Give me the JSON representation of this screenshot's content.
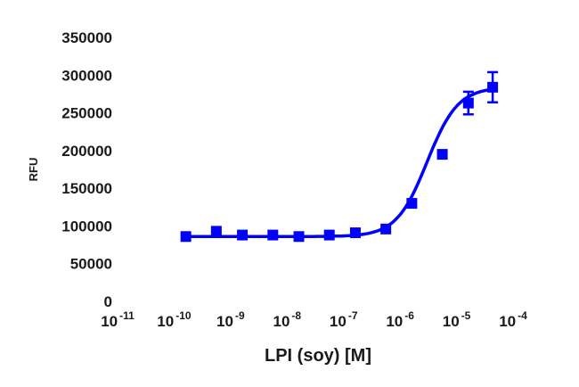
{
  "chart_data": {
    "type": "scatter",
    "title": "",
    "xlabel": "LPI (soy) [M]",
    "ylabel": "RFU",
    "x_scale": "log",
    "xlim": [
      1e-11,
      0.0001
    ],
    "ylim": [
      0,
      350000
    ],
    "grid": false,
    "legend": "none",
    "x_ticks": [
      1e-11,
      1e-10,
      1e-09,
      1e-08,
      1e-07,
      1e-06,
      1e-05,
      0.0001
    ],
    "x_tick_bases": [
      "10",
      "10",
      "10",
      "10",
      "10",
      "10",
      "10",
      "10"
    ],
    "x_tick_exponents": [
      "-11",
      "-10",
      "-9",
      "-8",
      "-7",
      "-6",
      "-5",
      "-4"
    ],
    "y_ticks": [
      0,
      50000,
      100000,
      150000,
      200000,
      250000,
      300000,
      350000
    ],
    "y_tick_labels": [
      "0",
      "50000",
      "100000",
      "150000",
      "200000",
      "250000",
      "300000",
      "350000"
    ],
    "series": [
      {
        "color": "#0000ff",
        "fit": "sigmoidal",
        "x": [
          1.3e-10,
          4.5e-10,
          1.3e-09,
          4.5e-09,
          1.3e-08,
          4.5e-08,
          1.3e-07,
          4.5e-07,
          1.3e-06,
          4.5e-06,
          1.3e-05,
          3.5e-05
        ],
        "y": [
          86000,
          93000,
          88000,
          88000,
          86000,
          88000,
          91000,
          96000,
          130000,
          195000,
          263000,
          284000
        ],
        "error": [
          0,
          0,
          0,
          0,
          0,
          0,
          0,
          0,
          0,
          0,
          15000,
          20000
        ]
      }
    ]
  }
}
